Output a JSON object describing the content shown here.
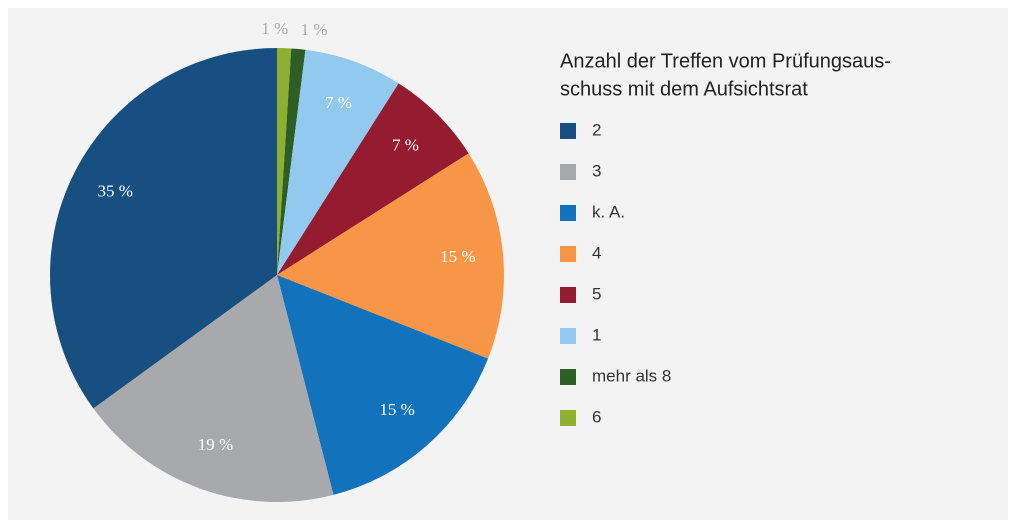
{
  "chart_data": {
    "type": "pie",
    "title": [
      "Anzahl der Treffen vom Prüfungsaus-",
      "schuss mit dem Aufsichtsrat"
    ],
    "categories": [
      "2",
      "3",
      "k. A.",
      "4",
      "5",
      "1",
      "mehr als 8",
      "6"
    ],
    "values": [
      35,
      19,
      15,
      15,
      7,
      7,
      1,
      1
    ],
    "value_labels": [
      "35 %",
      "19 %",
      "15 %",
      "15 %",
      "7 %",
      "7 %",
      "1 %",
      "1 %"
    ],
    "colors": [
      "#174f80",
      "#a7a9ac",
      "#1272bb",
      "#f79646",
      "#951b30",
      "#92c9ee",
      "#2e5e25",
      "#8db030"
    ]
  }
}
